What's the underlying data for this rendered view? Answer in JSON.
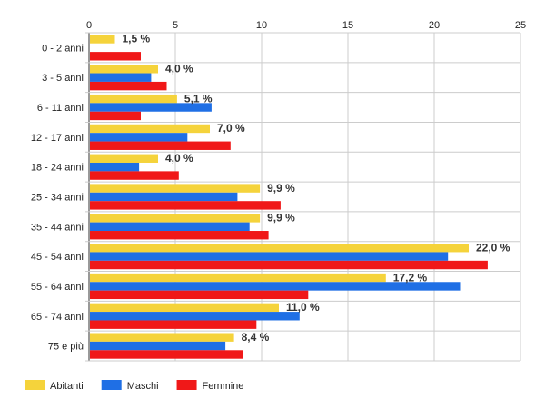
{
  "chart_data": {
    "type": "bar",
    "orientation": "horizontal",
    "title": "",
    "xlabel": "",
    "ylabel": "",
    "xlim": [
      0,
      25
    ],
    "x_ticks": [
      "0",
      "5",
      "10",
      "15",
      "20",
      "25"
    ],
    "x_tick_values": [
      0,
      5,
      10,
      15,
      20,
      25
    ],
    "categories": [
      "0 - 2 anni",
      "3 - 5 anni",
      "6 - 11 anni",
      "12 - 17 anni",
      "18 - 24 anni",
      "25 - 34 anni",
      "35 - 44 anni",
      "45 - 54 anni",
      "55 - 64 anni",
      "65 - 74 anni",
      "75 e più"
    ],
    "series": [
      {
        "name": "Abitanti",
        "color": "#f5d33b",
        "values": [
          1.5,
          4.0,
          5.1,
          7.0,
          4.0,
          9.9,
          9.9,
          22.0,
          17.2,
          11.0,
          8.4
        ]
      },
      {
        "name": "Maschi",
        "color": "#1f6fe5",
        "values": [
          0,
          3.6,
          7.1,
          5.7,
          2.9,
          8.6,
          9.3,
          20.8,
          21.5,
          12.2,
          7.9
        ]
      },
      {
        "name": "Femmine",
        "color": "#f01818",
        "values": [
          3.0,
          4.5,
          3.0,
          8.2,
          5.2,
          11.1,
          10.4,
          23.1,
          12.7,
          9.7,
          8.9
        ]
      }
    ],
    "data_labels": [
      "1,5 %",
      "4,0 %",
      "5,1 %",
      "7,0 %",
      "4,0 %",
      "9,9 %",
      "9,9 %",
      "22,0 %",
      "17,2 %",
      "11,0 %",
      "8,4 %"
    ],
    "grid": true,
    "legend_position": "bottom-left"
  }
}
